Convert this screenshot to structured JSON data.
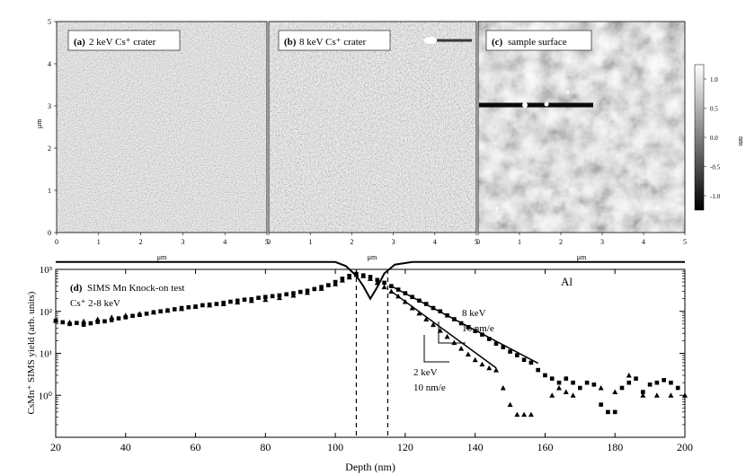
{
  "afm_panels": {
    "panels": [
      {
        "letter": "(a)",
        "caption": "2 keV Cs⁺ crater"
      },
      {
        "letter": "(b)",
        "caption": "8 keV Cs⁺ crater"
      },
      {
        "letter": "(c)",
        "caption": "sample surface"
      }
    ],
    "y_axis_label": "μm",
    "y_ticks": [
      "0",
      "1",
      "2",
      "3",
      "4",
      "5"
    ],
    "x_axis_labels": [
      "μm",
      "μm",
      "μm"
    ],
    "x_ticks": [
      "0",
      "1",
      "2",
      "3",
      "4",
      "5"
    ],
    "colorbar": {
      "ticks": [
        "1.0",
        "0.5",
        "0.0",
        "-0.5",
        "-1.0"
      ],
      "unit": "nm"
    }
  },
  "sims": {
    "panel_letter": "(d)",
    "title": "SIMS Mn Knock-on test",
    "subtitle": "Cs⁺ 2-8 keV",
    "al_label": "Al",
    "fit_8_energy": "8 keV",
    "fit_8_slope": "16 nm/e",
    "fit_2_energy": "2 keV",
    "fit_2_slope": "10 nm/e"
  },
  "chart_data": {
    "type": "scatter",
    "xlabel": "Depth (nm)",
    "ylabel": "CsMn⁺ SIMS yield (arb. units)",
    "xlim": [
      20,
      200
    ],
    "ylim": [
      0.1,
      1000
    ],
    "yscale": "log",
    "x_ticks": [
      20,
      40,
      60,
      80,
      100,
      120,
      140,
      160,
      180,
      200
    ],
    "y_tick_labels": [
      "10⁰",
      "10¹",
      "10²",
      "10³"
    ],
    "vlines": [
      106,
      115
    ],
    "al_profile": [
      [
        20,
        1500
      ],
      [
        100,
        1500
      ],
      [
        103,
        1200
      ],
      [
        106,
        700
      ],
      [
        108,
        400
      ],
      [
        110,
        200
      ],
      [
        112,
        380
      ],
      [
        114,
        800
      ],
      [
        117,
        1300
      ],
      [
        122,
        1500
      ],
      [
        200,
        1500
      ]
    ],
    "series": [
      {
        "name": "8 keV",
        "marker": "square",
        "points": [
          [
            20,
            60
          ],
          [
            22,
            55
          ],
          [
            24,
            50
          ],
          [
            26,
            53
          ],
          [
            28,
            48
          ],
          [
            30,
            52
          ],
          [
            32,
            56
          ],
          [
            34,
            58
          ],
          [
            36,
            62
          ],
          [
            38,
            68
          ],
          [
            40,
            72
          ],
          [
            42,
            78
          ],
          [
            44,
            82
          ],
          [
            46,
            88
          ],
          [
            48,
            95
          ],
          [
            50,
            100
          ],
          [
            52,
            105
          ],
          [
            54,
            112
          ],
          [
            56,
            120
          ],
          [
            58,
            125
          ],
          [
            60,
            130
          ],
          [
            62,
            140
          ],
          [
            64,
            145
          ],
          [
            66,
            150
          ],
          [
            68,
            160
          ],
          [
            70,
            170
          ],
          [
            72,
            180
          ],
          [
            74,
            190
          ],
          [
            76,
            195
          ],
          [
            78,
            210
          ],
          [
            80,
            220
          ],
          [
            82,
            230
          ],
          [
            84,
            240
          ],
          [
            86,
            255
          ],
          [
            88,
            270
          ],
          [
            90,
            290
          ],
          [
            92,
            310
          ],
          [
            94,
            340
          ],
          [
            96,
            380
          ],
          [
            98,
            420
          ],
          [
            100,
            500
          ],
          [
            102,
            600
          ],
          [
            104,
            700
          ],
          [
            106,
            780
          ],
          [
            108,
            720
          ],
          [
            110,
            660
          ],
          [
            112,
            560
          ],
          [
            114,
            480
          ],
          [
            116,
            400
          ],
          [
            118,
            330
          ],
          [
            120,
            270
          ],
          [
            122,
            220
          ],
          [
            124,
            180
          ],
          [
            126,
            150
          ],
          [
            128,
            120
          ],
          [
            130,
            100
          ],
          [
            132,
            80
          ],
          [
            134,
            65
          ],
          [
            136,
            52
          ],
          [
            138,
            42
          ],
          [
            140,
            34
          ],
          [
            142,
            28
          ],
          [
            144,
            22
          ],
          [
            146,
            17
          ],
          [
            148,
            14
          ],
          [
            150,
            11
          ],
          [
            152,
            9
          ],
          [
            154,
            7
          ],
          [
            156,
            6
          ],
          [
            158,
            4
          ],
          [
            160,
            3
          ],
          [
            162,
            2.5
          ],
          [
            164,
            2
          ],
          [
            166,
            2.5
          ],
          [
            168,
            2
          ],
          [
            170,
            1.5
          ],
          [
            172,
            2
          ],
          [
            174,
            1.8
          ],
          [
            176,
            0.6
          ],
          [
            178,
            0.4
          ],
          [
            180,
            0.4
          ],
          [
            182,
            1.5
          ],
          [
            184,
            2
          ],
          [
            186,
            2.5
          ],
          [
            188,
            1.2
          ],
          [
            190,
            1.8
          ],
          [
            192,
            2
          ],
          [
            194,
            2.3
          ],
          [
            196,
            2
          ],
          [
            198,
            1.5
          ]
        ]
      },
      {
        "name": "2 keV",
        "marker": "triangle",
        "points": [
          [
            20,
            60
          ],
          [
            24,
            55
          ],
          [
            28,
            58
          ],
          [
            32,
            65
          ],
          [
            36,
            72
          ],
          [
            40,
            80
          ],
          [
            44,
            88
          ],
          [
            48,
            95
          ],
          [
            52,
            105
          ],
          [
            56,
            115
          ],
          [
            60,
            130
          ],
          [
            64,
            140
          ],
          [
            68,
            150
          ],
          [
            72,
            165
          ],
          [
            76,
            180
          ],
          [
            80,
            190
          ],
          [
            84,
            210
          ],
          [
            88,
            240
          ],
          [
            92,
            280
          ],
          [
            96,
            350
          ],
          [
            100,
            450
          ],
          [
            102,
            550
          ],
          [
            104,
            650
          ],
          [
            106,
            750
          ],
          [
            108,
            700
          ],
          [
            110,
            600
          ],
          [
            112,
            480
          ],
          [
            114,
            380
          ],
          [
            116,
            300
          ],
          [
            118,
            230
          ],
          [
            120,
            170
          ],
          [
            122,
            120
          ],
          [
            124,
            90
          ],
          [
            126,
            65
          ],
          [
            128,
            48
          ],
          [
            130,
            35
          ],
          [
            132,
            25
          ],
          [
            134,
            18
          ],
          [
            136,
            13
          ],
          [
            138,
            9.5
          ],
          [
            140,
            7
          ],
          [
            142,
            5.5
          ],
          [
            144,
            4.5
          ],
          [
            146,
            4
          ],
          [
            148,
            1.5
          ],
          [
            150,
            0.6
          ],
          [
            152,
            0.35
          ],
          [
            154,
            0.35
          ],
          [
            156,
            0.35
          ],
          [
            162,
            1
          ],
          [
            164,
            1.5
          ],
          [
            166,
            1.2
          ],
          [
            168,
            1
          ],
          [
            176,
            1.5
          ],
          [
            180,
            1.2
          ],
          [
            184,
            3
          ],
          [
            188,
            1
          ],
          [
            192,
            1
          ],
          [
            196,
            1
          ],
          [
            200,
            1
          ]
        ]
      }
    ],
    "fits": [
      {
        "name": "8 keV",
        "points": [
          [
            116,
            400
          ],
          [
            158,
            5.8
          ]
        ]
      },
      {
        "name": "2 keV",
        "points": [
          [
            116,
            300
          ],
          [
            146,
            4.5
          ]
        ]
      }
    ]
  }
}
